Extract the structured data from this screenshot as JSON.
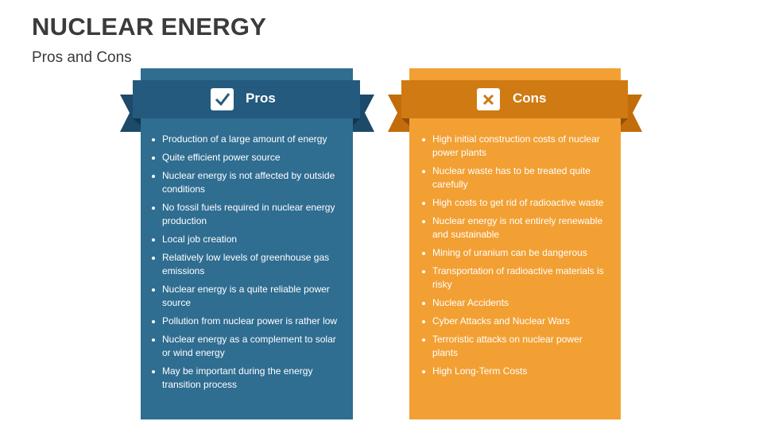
{
  "header": {
    "title": "NUCLEAR ENERGY",
    "subtitle": "Pros and Cons"
  },
  "pros": {
    "title": "Pros",
    "items": [
      "Production of a large amount of energy",
      "Quite efficient power source",
      "Nuclear energy is not affected by outside conditions",
      "No fossil fuels required in nuclear energy production",
      "Local job creation",
      "Relatively low levels of greenhouse gas emissions",
      "Nuclear energy is a quite reliable power source",
      "Pollution from nuclear power is rather low",
      "Nuclear energy as a complement to solar or wind energy",
      "May be important during the energy transition process"
    ]
  },
  "cons": {
    "title": "Cons",
    "items": [
      "High initial construction costs of nuclear power plants",
      "Nuclear waste has to be treated quite carefully",
      "High costs to get rid of radioactive waste",
      "Nuclear energy is not entirely renewable and sustainable",
      "Mining of uranium can be dangerous",
      "Transportation of radioactive materials is risky",
      "Nuclear Accidents",
      "Cyber Attacks and Nuclear Wars",
      "Terroristic attacks on nuclear power plants",
      "High Long-Term Costs"
    ]
  }
}
